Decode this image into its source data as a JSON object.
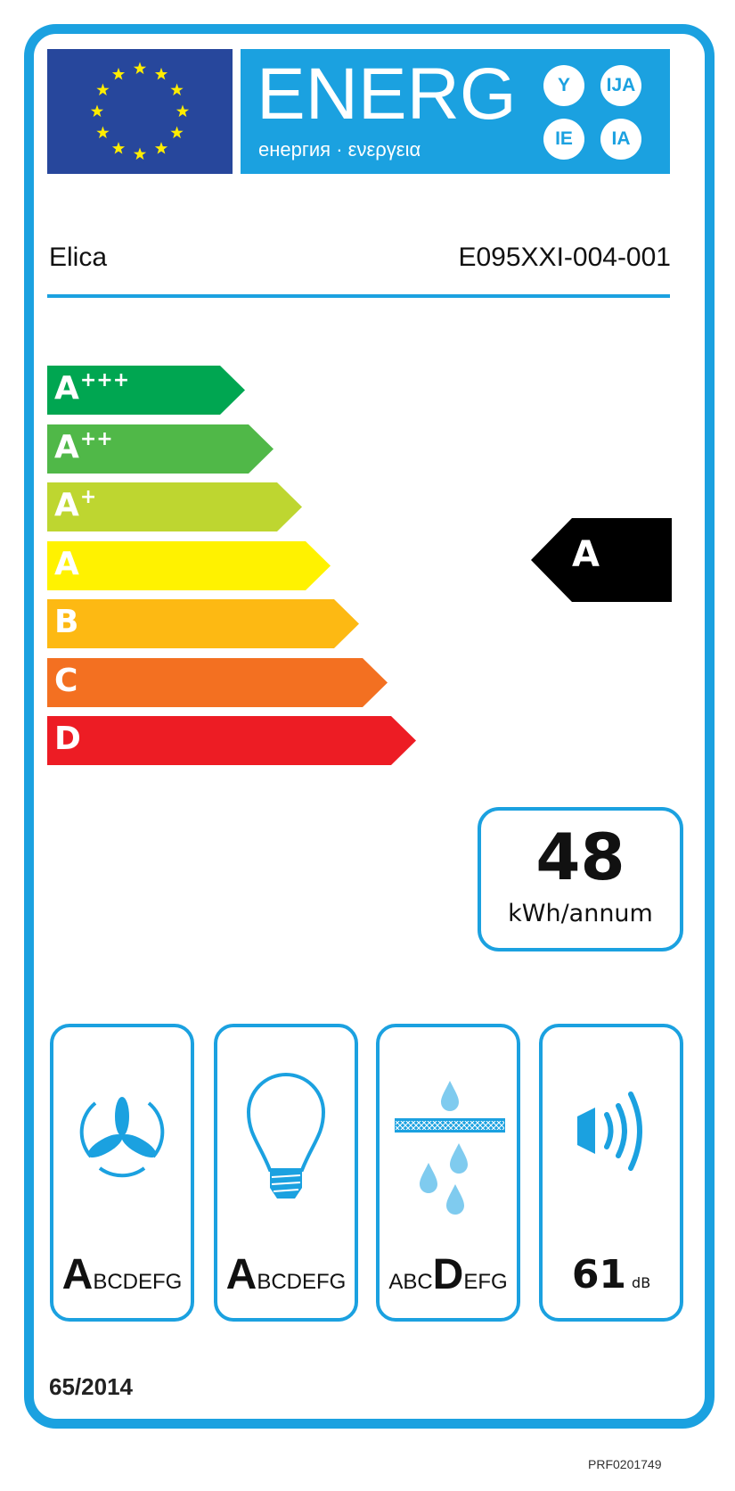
{
  "header": {
    "energy_word": "ENERG",
    "energy_sub": "енергия · ενεργεια",
    "language_suffixes": [
      "Y",
      "IJA",
      "IE",
      "IA"
    ]
  },
  "supplier": "Elica",
  "model": "E095XXI-004-001",
  "energy_classes": [
    {
      "base": "A",
      "plus": "+++",
      "color": "#00a651"
    },
    {
      "base": "A",
      "plus": "++",
      "color": "#50b848"
    },
    {
      "base": "A",
      "plus": "+",
      "color": "#bed630"
    },
    {
      "base": "A",
      "plus": "",
      "color": "#fff200"
    },
    {
      "base": "B",
      "plus": "",
      "color": "#fdb913"
    },
    {
      "base": "C",
      "plus": "",
      "color": "#f37021"
    },
    {
      "base": "D",
      "plus": "",
      "color": "#ed1c24"
    }
  ],
  "rating": {
    "class": "A",
    "color": "#000000"
  },
  "consumption": {
    "value": "48",
    "unit": "kWh/annum"
  },
  "sub_ratings": [
    {
      "icon": "fan-icon",
      "before": "",
      "selected": "A",
      "after": "BCDEFG"
    },
    {
      "icon": "light-bulb-icon",
      "before": "",
      "selected": "A",
      "after": "BCDEFG"
    },
    {
      "icon": "grease-filter-icon",
      "before": "ABC",
      "selected": "D",
      "after": "EFG"
    }
  ],
  "noise": {
    "value": "61",
    "unit": "dB",
    "icon": "speaker-icon"
  },
  "regulation": "65/2014",
  "footer_code": "PRF0201749",
  "colors": {
    "accent": "#1ba1e0",
    "eu_flag": "#27479c",
    "eu_stars": "#ffed00"
  }
}
